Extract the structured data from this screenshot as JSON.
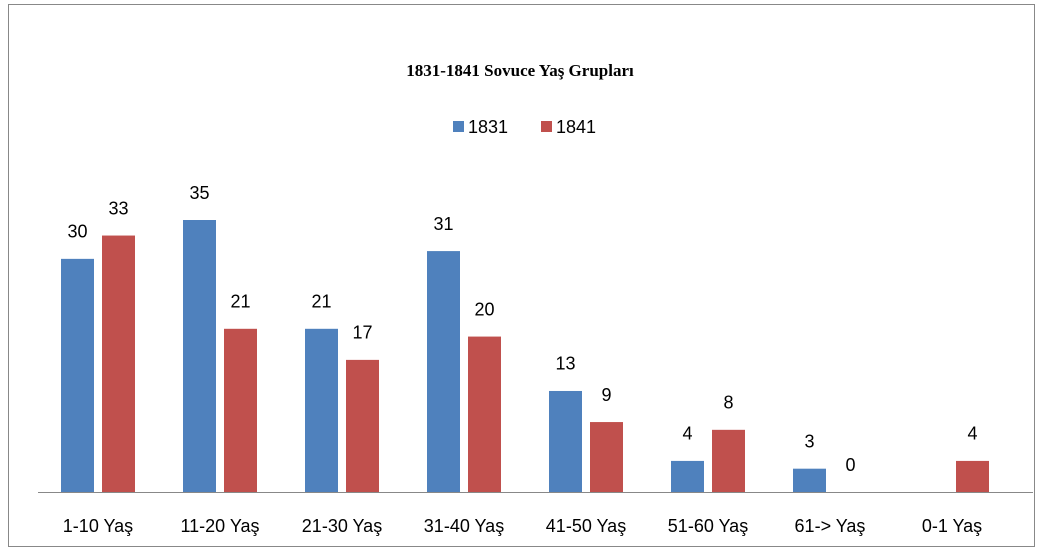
{
  "chart_data": {
    "type": "bar",
    "title": "1831-1841 Sovuce Yaş Grupları",
    "categories": [
      "1-10 Yaş",
      "11-20 Yaş",
      "21-30 Yaş",
      "31-40 Yaş",
      "41-50 Yaş",
      "51-60 Yaş",
      "61-> Yaş",
      "0-1 Yaş"
    ],
    "series": [
      {
        "name": "1831",
        "color": "#4f81bd",
        "values": [
          30,
          35,
          21,
          31,
          13,
          4,
          3,
          null
        ]
      },
      {
        "name": "1841",
        "color": "#c0504d",
        "values": [
          33,
          21,
          17,
          20,
          9,
          8,
          0,
          4
        ]
      }
    ],
    "legend": "top"
  }
}
